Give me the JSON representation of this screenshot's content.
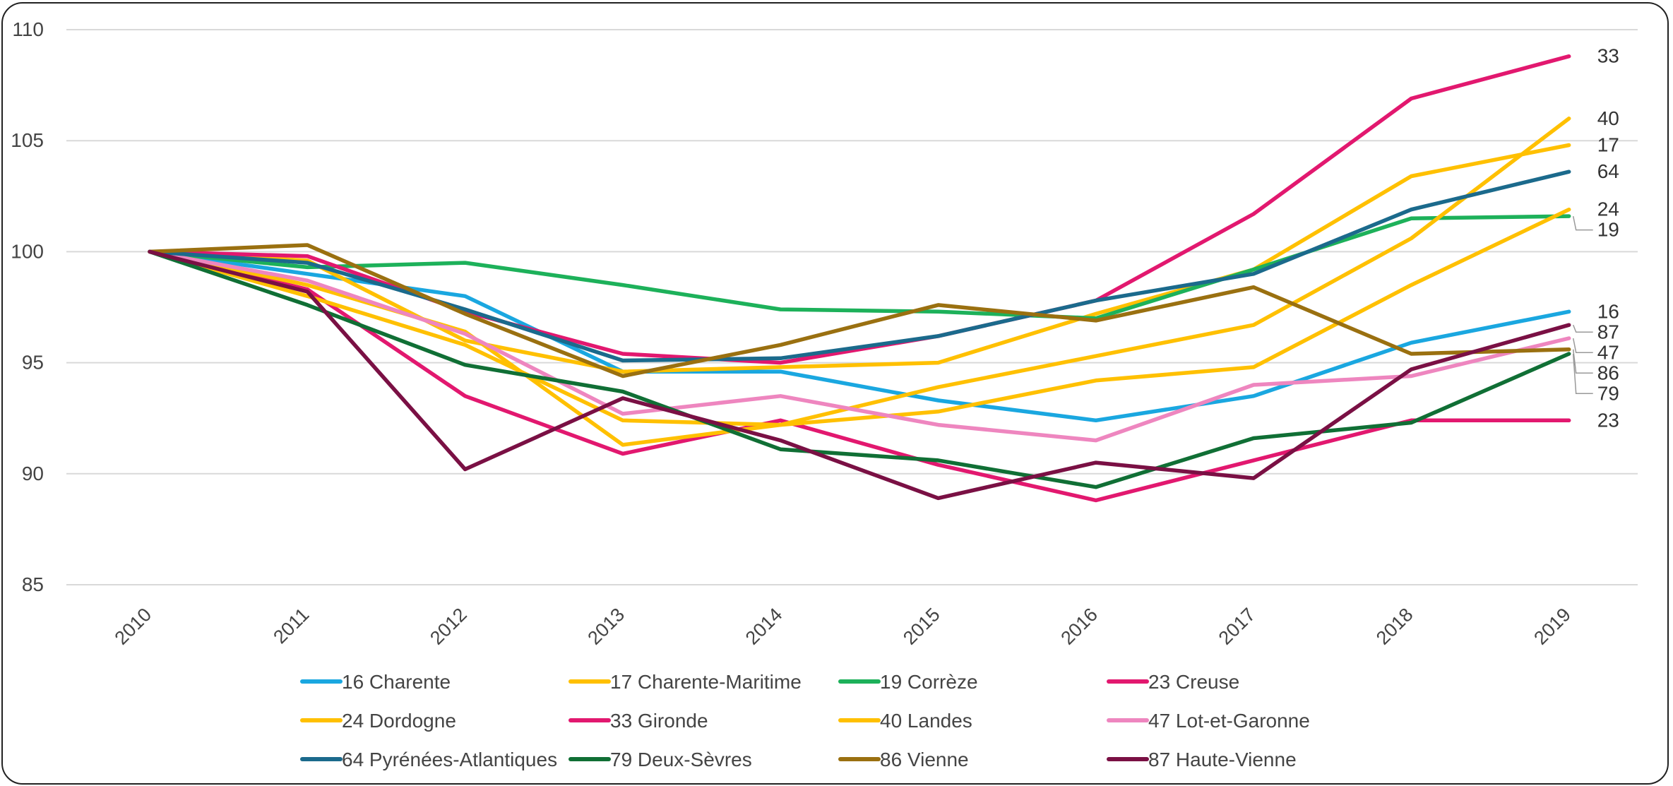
{
  "chart_data": {
    "type": "line",
    "title": "",
    "xlabel": "",
    "ylabel": "",
    "categories": [
      "2010",
      "2011",
      "2012",
      "2013",
      "2014",
      "2015",
      "2016",
      "2017",
      "2018",
      "2019"
    ],
    "y_ticks": [
      "85",
      "90",
      "95",
      "100",
      "105",
      "110"
    ],
    "ylim": [
      85,
      110
    ],
    "grid": "horizontal",
    "legend_position": "bottom",
    "series": [
      {
        "name": "16 Charente",
        "end_label": "16",
        "color": "#1aa7e0",
        "values": [
          100.0,
          99.0,
          98.0,
          94.6,
          94.6,
          93.3,
          92.4,
          93.5,
          95.9,
          97.3
        ]
      },
      {
        "name": "17 Charente-Maritime",
        "end_label": "17",
        "color": "#ffc000",
        "values": [
          100.0,
          99.6,
          96.0,
          94.6,
          94.8,
          95.0,
          97.2,
          99.2,
          103.4,
          104.8
        ]
      },
      {
        "name": "19 Corrèze",
        "end_label": "19",
        "color": "#1db15a",
        "values": [
          100.0,
          99.3,
          99.5,
          98.5,
          97.4,
          97.3,
          97.0,
          99.2,
          101.5,
          101.6
        ]
      },
      {
        "name": "23 Creuse",
        "end_label": "23",
        "color": "#e2186f",
        "values": [
          100.0,
          98.3,
          93.5,
          90.9,
          92.4,
          90.4,
          88.8,
          90.6,
          92.4,
          92.4
        ]
      },
      {
        "name": "24 Dordogne",
        "end_label": "24",
        "color": "#ffc000",
        "values": [
          100.0,
          98.0,
          95.8,
          92.4,
          92.2,
          92.8,
          94.2,
          94.8,
          98.5,
          101.9
        ]
      },
      {
        "name": "33 Gironde",
        "end_label": "33",
        "color": "#e2186f",
        "values": [
          100.0,
          99.8,
          97.3,
          95.4,
          95.0,
          96.2,
          97.8,
          101.7,
          106.9,
          108.8
        ]
      },
      {
        "name": "40 Landes",
        "end_label": "40",
        "color": "#ffc000",
        "values": [
          100.0,
          98.5,
          96.4,
          91.3,
          92.2,
          93.9,
          95.3,
          96.7,
          100.6,
          106.0
        ]
      },
      {
        "name": "47 Lot-et-Garonne",
        "end_label": "47",
        "color": "#ee86bf",
        "values": [
          100.0,
          98.7,
          96.3,
          92.7,
          93.5,
          92.2,
          91.5,
          94.0,
          94.4,
          96.1
        ]
      },
      {
        "name": "64 Pyrénées-Atlantiques",
        "end_label": "64",
        "color": "#1b6a8c",
        "values": [
          100.0,
          99.5,
          97.4,
          95.1,
          95.2,
          96.2,
          97.8,
          99.0,
          101.9,
          103.6
        ]
      },
      {
        "name": "79 Deux-Sèvres",
        "end_label": "79",
        "color": "#106f35",
        "values": [
          100.0,
          97.6,
          94.9,
          93.7,
          91.1,
          90.6,
          89.4,
          91.6,
          92.3,
          95.4
        ]
      },
      {
        "name": "86 Vienne",
        "end_label": "86",
        "color": "#9a7010",
        "values": [
          100.0,
          100.3,
          97.2,
          94.4,
          95.8,
          97.6,
          96.9,
          98.4,
          95.4,
          95.6
        ]
      },
      {
        "name": "87 Haute-Vienne",
        "end_label": "87",
        "color": "#7a1044",
        "values": [
          100.0,
          98.2,
          90.2,
          93.4,
          91.5,
          88.9,
          90.5,
          89.8,
          94.7,
          96.7
        ]
      }
    ]
  }
}
